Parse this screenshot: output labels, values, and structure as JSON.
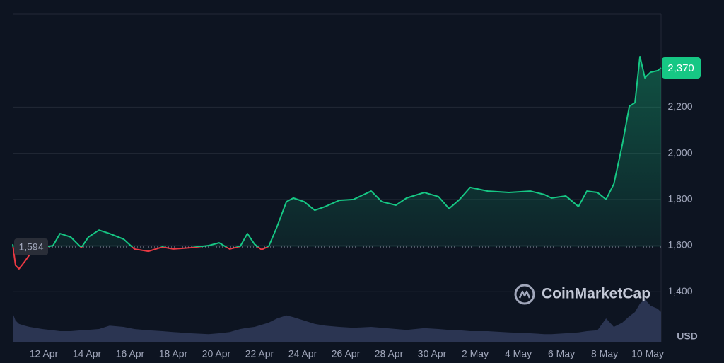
{
  "chart_data": {
    "type": "line",
    "watermark": "CoinMarketCap",
    "currency": "USD",
    "x": [
      -1.44,
      -1.31,
      -1.15,
      -0.89,
      -0.66,
      -0.07,
      0.43,
      0.75,
      1.25,
      1.74,
      2.07,
      2.56,
      3.05,
      3.7,
      4.2,
      4.85,
      5.5,
      6.0,
      6.82,
      7.64,
      8.13,
      8.62,
      9.11,
      9.44,
      9.77,
      10.1,
      10.43,
      10.82,
      11.25,
      11.57,
      12.07,
      12.56,
      13.05,
      13.7,
      14.36,
      15.18,
      15.67,
      16.33,
      16.82,
      17.64,
      18.3,
      18.79,
      19.28,
      19.77,
      20.59,
      21.57,
      22.56,
      23.21,
      23.54,
      24.2,
      24.79,
      25.18,
      25.67,
      26.07,
      26.43,
      26.82,
      27.15,
      27.41,
      27.64,
      27.87,
      28.13,
      28.46,
      28.62
    ],
    "series": [
      {
        "name": "Price",
        "color": "#16c784",
        "below_color": "#ea3943",
        "values": [
          1606,
          1514,
          1499,
          1530,
          1560,
          1591,
          1600,
          1652,
          1637,
          1591,
          1637,
          1667,
          1652,
          1628,
          1585,
          1575,
          1594,
          1585,
          1591,
          1600,
          1612,
          1585,
          1597,
          1652,
          1606,
          1582,
          1597,
          1683,
          1790,
          1806,
          1790,
          1753,
          1769,
          1796,
          1800,
          1836,
          1790,
          1775,
          1806,
          1830,
          1812,
          1760,
          1800,
          1852,
          1836,
          1830,
          1836,
          1821,
          1806,
          1815,
          1769,
          1836,
          1830,
          1800,
          1867,
          2036,
          2204,
          2219,
          2419,
          2327,
          2351,
          2358,
          2370
        ]
      },
      {
        "name": "Volume",
        "color": "#2b3552",
        "axis": "volume",
        "values": [
          67,
          50,
          42,
          38,
          35,
          30,
          27,
          25,
          25,
          27,
          28,
          30,
          38,
          35,
          30,
          27,
          25,
          23,
          20,
          18,
          20,
          23,
          30,
          33,
          35,
          40,
          45,
          55,
          62,
          58,
          50,
          42,
          38,
          35,
          33,
          35,
          33,
          30,
          28,
          32,
          30,
          28,
          27,
          25,
          25,
          22,
          20,
          18,
          18,
          20,
          22,
          25,
          27,
          55,
          35,
          45,
          60,
          70,
          90,
          100,
          85,
          78,
          70
        ]
      }
    ],
    "baseline": {
      "value": 1594,
      "label": "1,594"
    },
    "last_price": {
      "value": 2370,
      "label": "2,370"
    },
    "xlim": [
      -1.44,
      28.62
    ],
    "xticks": [
      {
        "value": 0,
        "label": "12 Apr"
      },
      {
        "value": 2,
        "label": "14 Apr"
      },
      {
        "value": 4,
        "label": "16 Apr"
      },
      {
        "value": 6,
        "label": "18 Apr"
      },
      {
        "value": 8,
        "label": "20 Apr"
      },
      {
        "value": 10,
        "label": "22 Apr"
      },
      {
        "value": 12,
        "label": "24 Apr"
      },
      {
        "value": 14,
        "label": "26 Apr"
      },
      {
        "value": 16,
        "label": "28 Apr"
      },
      {
        "value": 18,
        "label": "30 Apr"
      },
      {
        "value": 20,
        "label": "2 May"
      },
      {
        "value": 22,
        "label": "4 May"
      },
      {
        "value": 24,
        "label": "6 May"
      },
      {
        "value": 26,
        "label": "8 May"
      },
      {
        "value": 28,
        "label": "10 May"
      }
    ],
    "ylim": [
      1183,
      2603
    ],
    "yticks": [
      {
        "value": 1400,
        "label": "1,400"
      },
      {
        "value": 1600,
        "label": "1,600"
      },
      {
        "value": 1800,
        "label": "1,800"
      },
      {
        "value": 2000,
        "label": "2,000"
      },
      {
        "value": 2200,
        "label": "2,200"
      }
    ],
    "vlim": [
      0,
      100
    ],
    "grid": true
  }
}
